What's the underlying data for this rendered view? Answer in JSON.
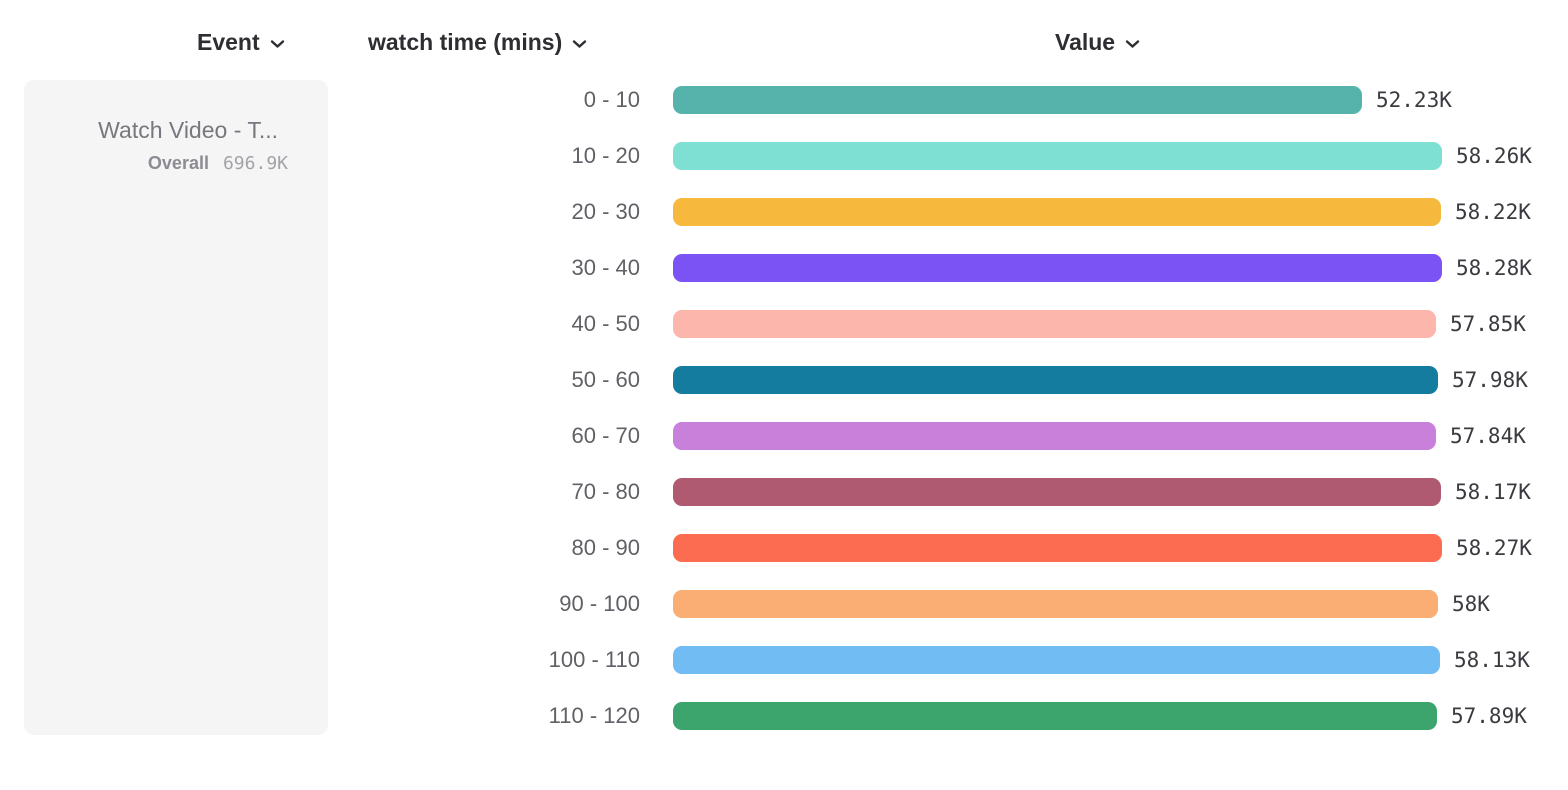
{
  "header": {
    "columns": [
      {
        "id": "event",
        "label": "Event"
      },
      {
        "id": "breakdown",
        "label": "watch time (mins)"
      },
      {
        "id": "value",
        "label": "Value"
      }
    ]
  },
  "legend": {
    "event_name": "Watch Video - T...",
    "overall_label": "Overall",
    "overall_value": "696.9K"
  },
  "colors": {
    "panel_bg": "#f5f5f6",
    "header_text": "#2d2d32",
    "category_label_text": "#606066",
    "value_text": "#3a3a40",
    "event_name_text": "#77777d",
    "overall_text": "#8b8b91"
  },
  "chart_data": {
    "type": "bar",
    "orientation": "horizontal",
    "title": "",
    "xlabel": "Value",
    "ylabel": "watch time (mins)",
    "grid": false,
    "legend_position": "left",
    "xlim_k": [
      0,
      58.28
    ],
    "categories": [
      "0 - 10",
      "10 - 20",
      "20 - 30",
      "30 - 40",
      "40 - 50",
      "50 - 60",
      "60 - 70",
      "70 - 80",
      "80 - 90",
      "90 - 100",
      "100 - 110",
      "110 - 120"
    ],
    "values_k": [
      52.23,
      58.26,
      58.22,
      58.28,
      57.85,
      57.98,
      57.84,
      58.17,
      58.27,
      58.0,
      58.13,
      57.89
    ],
    "value_labels": [
      "52.23K",
      "58.26K",
      "58.22K",
      "58.28K",
      "57.85K",
      "57.98K",
      "57.84K",
      "58.17K",
      "58.27K",
      "58K",
      "58.13K",
      "57.89K"
    ],
    "rows": [
      {
        "label": "0 - 10",
        "value_k": 52.23,
        "value_label": "52.23K",
        "color": "#56B3AB"
      },
      {
        "label": "10 - 20",
        "value_k": 58.26,
        "value_label": "58.26K",
        "color": "#7EE0D2"
      },
      {
        "label": "20 - 30",
        "value_k": 58.22,
        "value_label": "58.22K",
        "color": "#F6B83D"
      },
      {
        "label": "30 - 40",
        "value_k": 58.28,
        "value_label": "58.28K",
        "color": "#7B52F4"
      },
      {
        "label": "40 - 50",
        "value_k": 57.85,
        "value_label": "57.85K",
        "color": "#FCB6AB"
      },
      {
        "label": "50 - 60",
        "value_k": 57.98,
        "value_label": "57.98K",
        "color": "#147C9E"
      },
      {
        "label": "60 - 70",
        "value_k": 57.84,
        "value_label": "57.84K",
        "color": "#C880DB"
      },
      {
        "label": "70 - 80",
        "value_k": 58.17,
        "value_label": "58.17K",
        "color": "#B05A72"
      },
      {
        "label": "80 - 90",
        "value_k": 58.27,
        "value_label": "58.27K",
        "color": "#FC6C50"
      },
      {
        "label": "90 - 100",
        "value_k": 58.0,
        "value_label": "58K",
        "color": "#FBAE73"
      },
      {
        "label": "100 - 110",
        "value_k": 58.13,
        "value_label": "58.13K",
        "color": "#70BCF3"
      },
      {
        "label": "110 - 120",
        "value_k": 57.89,
        "value_label": "57.89K",
        "color": "#3BA56D"
      }
    ]
  }
}
